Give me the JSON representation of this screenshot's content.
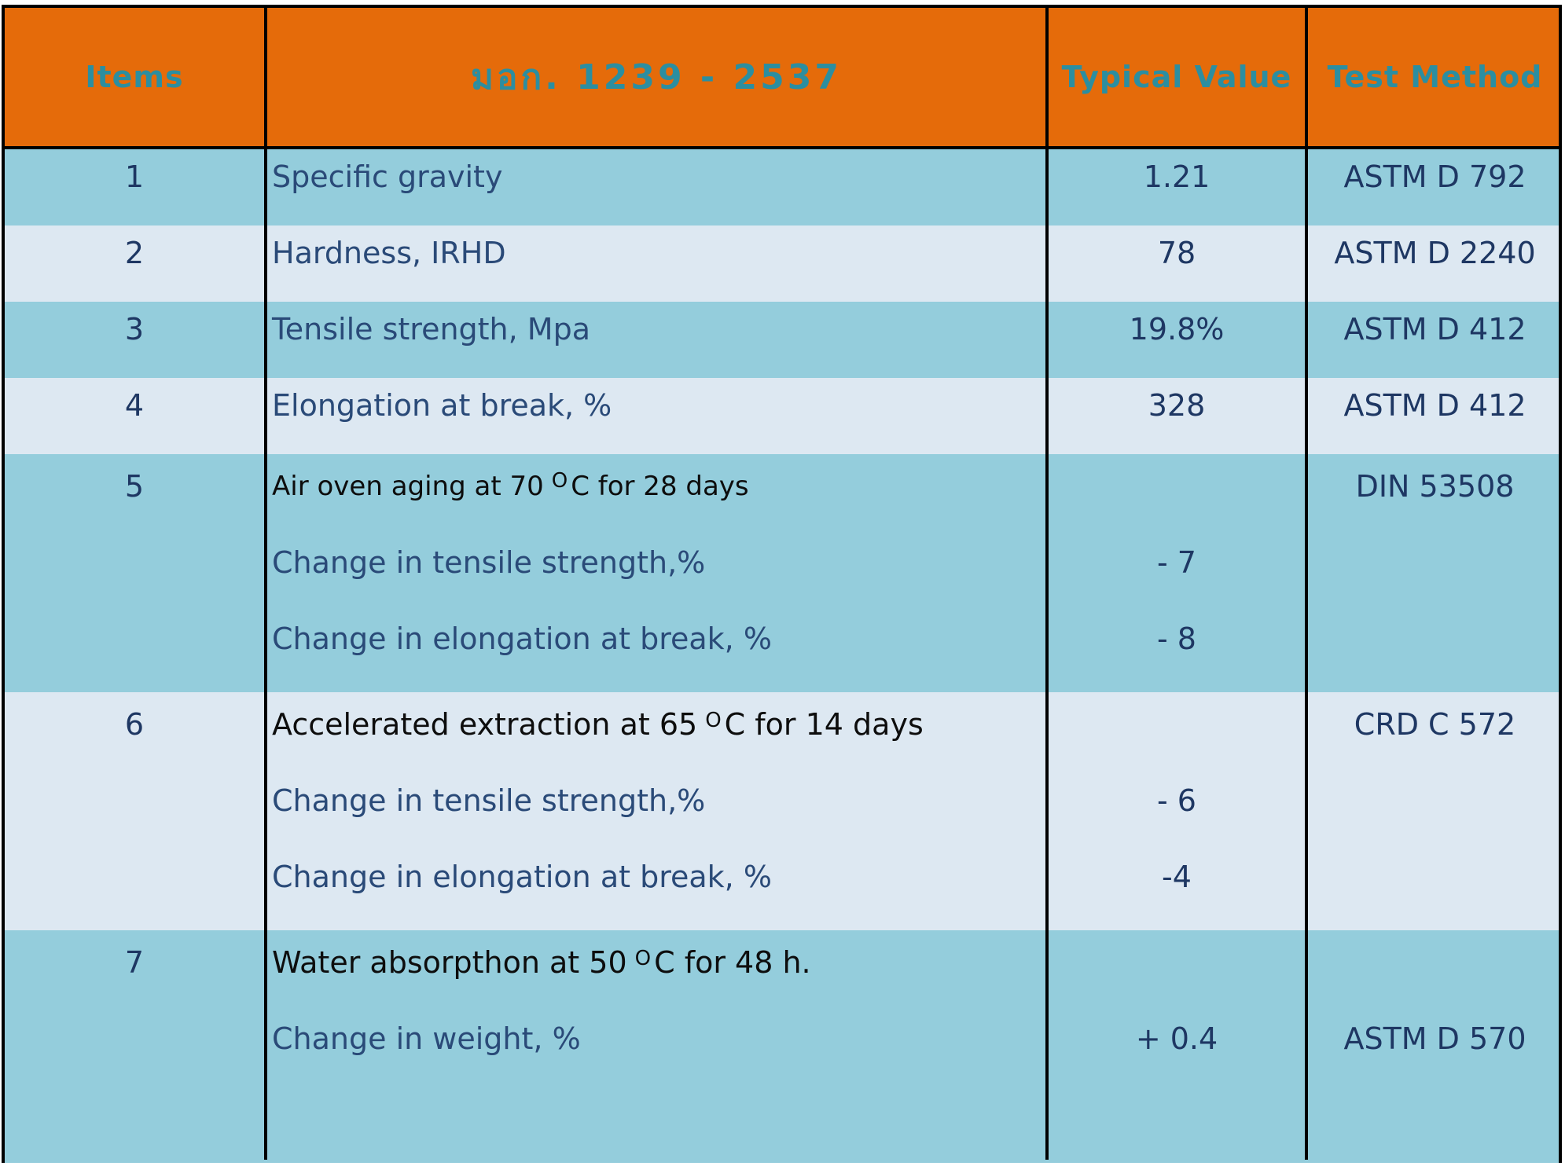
{
  "headers": {
    "items": "Items",
    "standard": "มอก. 1239 - 2537",
    "typical": "Typical  Value",
    "method": "Test Method"
  },
  "rows": [
    {
      "item": "1",
      "property": "Specific gravity",
      "value": "1.21",
      "method": "ASTM D 792"
    },
    {
      "item": "2",
      "property": "Hardness, IRHD",
      "value": "78",
      "method": "ASTM D 2240"
    },
    {
      "item": "3",
      "property": "Tensile strength, Mpa",
      "value": "19.8%",
      "method": "ASTM D 412"
    },
    {
      "item": "4",
      "property": "Elongation at break, %",
      "value": "328",
      "method": "ASTM D 412"
    }
  ],
  "group5": {
    "item": "5",
    "title_pre": "Air oven aging at 70",
    "title_deg": "O",
    "title_post": "C for 28 days",
    "method": "DIN 53508",
    "sub": [
      {
        "property": "Change in tensile strength,%",
        "value": "- 7"
      },
      {
        "property": "Change in elongation at break, %",
        "value": "- 8"
      }
    ]
  },
  "group6": {
    "item": "6",
    "title_pre": "Accelerated extraction at 65",
    "title_deg": "O",
    "title_post": "C for 14 days",
    "method": "CRD C 572",
    "sub": [
      {
        "property": "Change in tensile strength,%",
        "value": "- 6"
      },
      {
        "property": "Change in elongation at break, %",
        "value": "-4"
      }
    ]
  },
  "group7": {
    "item": "7",
    "title_pre": "Water absorpthon at 50",
    "title_deg": "O",
    "title_post": "C for 48 h.",
    "sub": [
      {
        "property": "Change in weight, %",
        "value": "+ 0.4",
        "method": "ASTM D 570"
      }
    ]
  },
  "colors": {
    "header_bg": "#e56b0a",
    "header_text": "#2c8ea0",
    "row_dark": "#94cddc",
    "row_light": "#dde8f2"
  }
}
